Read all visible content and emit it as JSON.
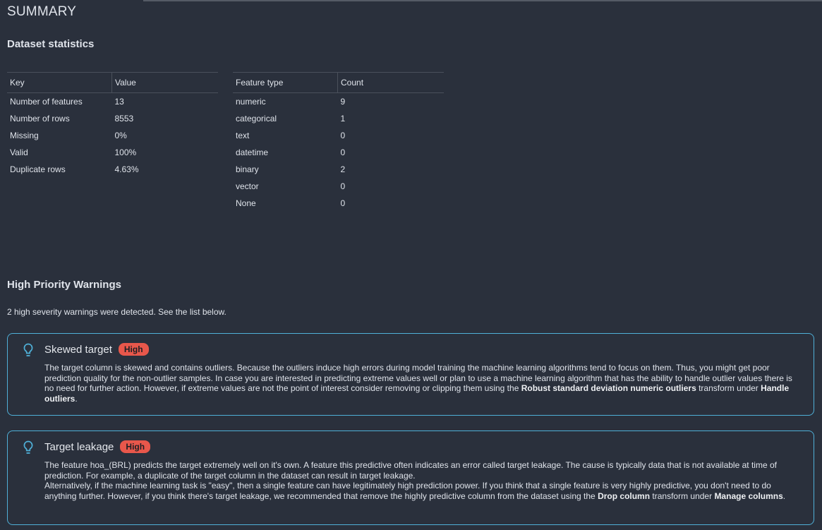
{
  "title": "SUMMARY",
  "dataset_statistics": {
    "heading": "Dataset statistics",
    "key_table": {
      "headers": [
        "Key",
        "Value"
      ],
      "rows": [
        [
          "Number of features",
          "13"
        ],
        [
          "Number of rows",
          "8553"
        ],
        [
          "Missing",
          "0%"
        ],
        [
          "Valid",
          "100%"
        ],
        [
          "Duplicate rows",
          "4.63%"
        ]
      ]
    },
    "feature_table": {
      "headers": [
        "Feature type",
        "Count"
      ],
      "rows": [
        [
          "numeric",
          "9"
        ],
        [
          "categorical",
          "1"
        ],
        [
          "text",
          "0"
        ],
        [
          "datetime",
          "0"
        ],
        [
          "binary",
          "2"
        ],
        [
          "vector",
          "0"
        ],
        [
          "None",
          "0"
        ]
      ]
    }
  },
  "warnings": {
    "heading": "High Priority Warnings",
    "note": "2 high severity warnings were detected. See the list below.",
    "icon": "lightbulb-icon",
    "accent": "#4fb0d8",
    "badge_color": "#e8574b",
    "items": [
      {
        "title": "Skewed target",
        "severity": "High",
        "paragraphs": [
          [
            {
              "text": "The target column is skewed and contains outliers. Because the outliers induce high errors during model training the machine learning algorithms tend to focus on them. Thus, you might get poor prediction quality for the non-outlier samples. In case you are interested in predicting extreme values well or plan to use a machine learning algorithm that has the ability to handle outlier values there is no need for further action. However, if extreme values are not the point of interest consider removing or clipping them using the ",
              "bold": false
            },
            {
              "text": "Robust standard deviation numeric outliers",
              "bold": true
            },
            {
              "text": " transform under ",
              "bold": false
            },
            {
              "text": "Handle outliers",
              "bold": true
            },
            {
              "text": ".",
              "bold": false
            }
          ]
        ]
      },
      {
        "title": "Target leakage",
        "severity": "High",
        "paragraphs": [
          [
            {
              "text": "The feature hoa_(BRL) predicts the target extremely well on it's own. A feature this predictive often indicates an error called target leakage. The cause is typically data that is not available at time of prediction. For example, a duplicate of the target column in the dataset can result in target leakage.",
              "bold": false
            }
          ],
          [
            {
              "text": "Alternatively, if the machine learning task is \"easy\", then a single feature can have legitimately high prediction power. If you think that a single feature is very highly predictive, you don't need to do anything further. However, if you think there's target leakage, we recommended that remove the highly predictive column from the dataset using the ",
              "bold": false
            },
            {
              "text": "Drop column",
              "bold": true
            },
            {
              "text": " transform under ",
              "bold": false
            },
            {
              "text": "Manage columns",
              "bold": true
            },
            {
              "text": ".",
              "bold": false
            }
          ]
        ]
      }
    ]
  }
}
